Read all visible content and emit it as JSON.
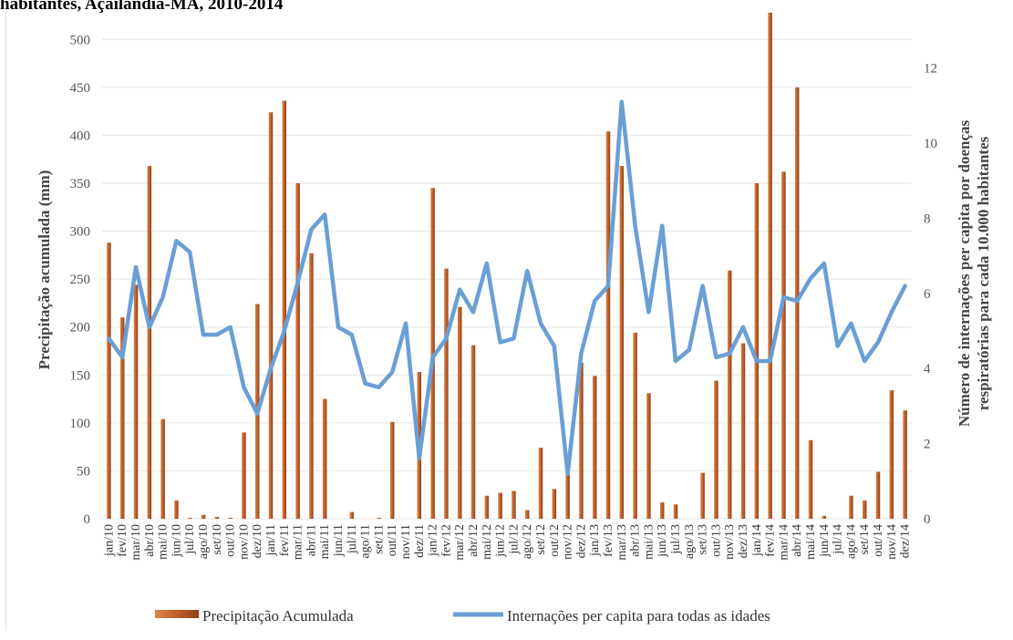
{
  "title": "habitantes, Açailândia-MA, 2010-2014",
  "chart_data": {
    "type": "bar+line",
    "categories": [
      "jan/10",
      "fev/10",
      "mar/10",
      "abr/10",
      "mai/10",
      "jun/10",
      "jul/10",
      "ago/10",
      "set/10",
      "out/10",
      "nov/10",
      "dez/10",
      "jan/11",
      "fev/11",
      "mar/11",
      "abr/11",
      "mai/11",
      "jun/11",
      "jul/11",
      "ago/11",
      "set/11",
      "out/11",
      "nov/11",
      "dez/11",
      "jan/12",
      "fev/12",
      "mar/12",
      "abr/12",
      "mai/12",
      "jun/12",
      "jul/12",
      "ago/12",
      "set/12",
      "out/12",
      "nov/12",
      "dez/12",
      "jan/13",
      "fev/13",
      "mar/13",
      "abr/13",
      "mai/13",
      "jun/13",
      "jul/13",
      "ago/13",
      "set/13",
      "out/13",
      "nov/13",
      "dez/13",
      "jan/14",
      "fev/14",
      "mar/14",
      "abr/14",
      "mai/14",
      "jun/14",
      "jul/14",
      "ago/14",
      "set/14",
      "out/14",
      "nov/14",
      "dez/14"
    ],
    "series": [
      {
        "name": "Precipitação Acumulada",
        "axis": "left",
        "type": "bar",
        "color": "#c0602a",
        "values": [
          288,
          210,
          244,
          368,
          104,
          19,
          1,
          4,
          2,
          1,
          90,
          224,
          424,
          436,
          350,
          277,
          125,
          0,
          7,
          0,
          1,
          101,
          0,
          153,
          345,
          261,
          221,
          181,
          24,
          27,
          29,
          9,
          74,
          31,
          57,
          163,
          149,
          404,
          368,
          194,
          131,
          17,
          15,
          0,
          48,
          144,
          259,
          183,
          350,
          528,
          362,
          450,
          82,
          3,
          0,
          24,
          19,
          49,
          134,
          113
        ]
      },
      {
        "name": "Internações per capita para todas as idades",
        "axis": "right",
        "type": "line",
        "color": "#6a9fd6",
        "values": [
          4.8,
          4.3,
          6.7,
          5.1,
          5.9,
          7.4,
          7.1,
          4.9,
          4.9,
          5.1,
          3.5,
          2.8,
          4.0,
          5.0,
          6.3,
          7.7,
          8.1,
          5.1,
          4.9,
          3.6,
          3.5,
          3.9,
          5.2,
          1.6,
          4.3,
          4.8,
          6.1,
          5.5,
          6.8,
          4.7,
          4.8,
          6.6,
          5.2,
          4.6,
          1.2,
          4.4,
          5.8,
          6.2,
          11.1,
          7.8,
          5.5,
          7.8,
          4.2,
          4.5,
          6.2,
          4.3,
          4.4,
          5.1,
          4.2,
          4.2,
          5.9,
          5.8,
          6.4,
          6.8,
          4.6,
          5.2,
          4.2,
          4.7,
          5.5,
          6.2
        ]
      }
    ],
    "ylabel_left": "Precipitação acumulada  (mm)",
    "ylabel_right": [
      "Número de internações per capita por doenças",
      "respiratórias  para cada 10.000 habitantes"
    ],
    "ylim_left": [
      0,
      525
    ],
    "yticks_left": [
      0,
      50,
      100,
      150,
      200,
      250,
      300,
      350,
      400,
      450,
      500
    ],
    "ylim_right": [
      0,
      13.4
    ],
    "yticks_right": [
      0,
      2,
      4,
      6,
      8,
      10,
      12
    ],
    "grid": true,
    "legend": "bottom"
  }
}
